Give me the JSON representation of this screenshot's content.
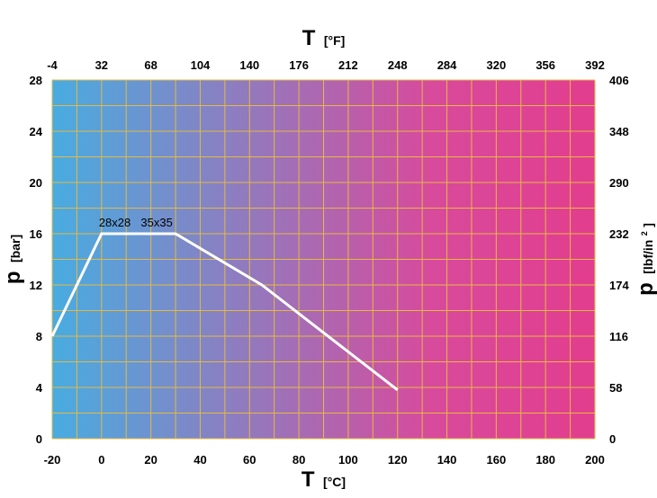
{
  "chart_data": {
    "type": "line",
    "x_bottom": {
      "title_symbol": "T",
      "title_unit": "[°C]",
      "range": [
        -20,
        200
      ],
      "ticks": [
        "-20",
        "0",
        "20",
        "40",
        "60",
        "80",
        "100",
        "120",
        "140",
        "160",
        "180",
        "200"
      ]
    },
    "x_top": {
      "title_symbol": "T",
      "title_unit": "[°F]",
      "ticks": [
        "-4",
        "32",
        "68",
        "104",
        "140",
        "176",
        "212",
        "248",
        "284",
        "320",
        "356",
        "392"
      ]
    },
    "y_left": {
      "title_symbol": "p",
      "title_unit": "[bar]",
      "range": [
        0,
        28
      ],
      "ticks": [
        "0",
        "4",
        "8",
        "12",
        "16",
        "20",
        "24",
        "28"
      ]
    },
    "y_right": {
      "title_symbol": "p",
      "title_unit": "[lbf/in",
      "title_unit_sup": "2",
      "title_unit_close": "]",
      "ticks": [
        "0",
        "58",
        "116",
        "174",
        "232",
        "290",
        "348",
        "406"
      ]
    },
    "grid": true,
    "gradient_colors": [
      "#48ace1",
      "#d84a9c",
      "#e33d8e"
    ],
    "grid_color": "#e4b944",
    "series": [
      {
        "color": "#ffffff",
        "x": [
          -20,
          0,
          30,
          65,
          120
        ],
        "y": [
          8,
          16,
          16,
          12,
          3.8
        ]
      }
    ],
    "annotations": [
      {
        "text": "28x28",
        "x": 0,
        "y": 16
      },
      {
        "text": "35x35",
        "x": 17,
        "y": 16
      }
    ]
  }
}
